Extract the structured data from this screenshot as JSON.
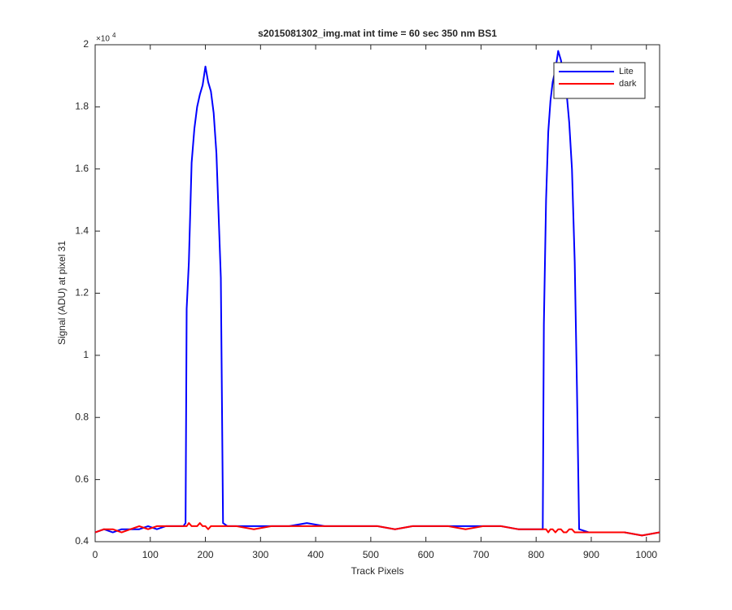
{
  "chart_data": {
    "type": "line",
    "title": "s2015081302_img.mat int time = 60 sec  350 nm BS1",
    "x_label": "Track Pixels",
    "y_label": "Signal (ADU) at pixel 31",
    "y_exponent": {
      "base": "×10",
      "power": "4"
    },
    "x": [
      0,
      16,
      32,
      48,
      64,
      80,
      96,
      112,
      128,
      144,
      160,
      164,
      166,
      170,
      175,
      180,
      185,
      190,
      195,
      200,
      205,
      210,
      215,
      220,
      225,
      228,
      232,
      240,
      256,
      288,
      320,
      352,
      384,
      416,
      448,
      480,
      512,
      544,
      576,
      608,
      640,
      672,
      704,
      736,
      768,
      800,
      812,
      814,
      818,
      822,
      826,
      830,
      835,
      840,
      845,
      850,
      855,
      860,
      865,
      870,
      874,
      878,
      896,
      928,
      960,
      992,
      1024
    ],
    "series": [
      {
        "name": "Lite",
        "color": "#0000ff",
        "values": [
          0.43,
          0.44,
          0.43,
          0.44,
          0.44,
          0.44,
          0.45,
          0.44,
          0.45,
          0.45,
          0.45,
          0.46,
          1.15,
          1.3,
          1.62,
          1.73,
          1.8,
          1.84,
          1.87,
          1.93,
          1.88,
          1.85,
          1.78,
          1.65,
          1.4,
          1.25,
          0.46,
          0.45,
          0.45,
          0.45,
          0.45,
          0.45,
          0.46,
          0.45,
          0.45,
          0.45,
          0.45,
          0.44,
          0.45,
          0.45,
          0.45,
          0.45,
          0.45,
          0.45,
          0.44,
          0.44,
          0.44,
          1.1,
          1.5,
          1.72,
          1.82,
          1.88,
          1.92,
          1.98,
          1.95,
          1.9,
          1.85,
          1.75,
          1.6,
          1.3,
          0.9,
          0.44,
          0.43,
          0.43,
          0.43,
          0.42,
          0.43
        ]
      },
      {
        "name": "dark",
        "color": "#ff0000",
        "values": [
          0.43,
          0.44,
          0.44,
          0.43,
          0.44,
          0.45,
          0.44,
          0.45,
          0.45,
          0.45,
          0.45,
          0.45,
          0.45,
          0.46,
          0.45,
          0.45,
          0.45,
          0.46,
          0.45,
          0.45,
          0.44,
          0.45,
          0.45,
          0.45,
          0.45,
          0.45,
          0.45,
          0.45,
          0.45,
          0.44,
          0.45,
          0.45,
          0.45,
          0.45,
          0.45,
          0.45,
          0.45,
          0.44,
          0.45,
          0.45,
          0.45,
          0.44,
          0.45,
          0.45,
          0.44,
          0.44,
          0.44,
          0.44,
          0.44,
          0.43,
          0.44,
          0.44,
          0.43,
          0.44,
          0.44,
          0.43,
          0.43,
          0.44,
          0.44,
          0.43,
          0.43,
          0.43,
          0.43,
          0.43,
          0.43,
          0.42,
          0.43
        ]
      }
    ],
    "xlim": [
      0,
      1024
    ],
    "xticks": [
      0,
      100,
      200,
      300,
      400,
      500,
      600,
      700,
      800,
      900,
      1000
    ],
    "ylim": [
      0.4,
      2
    ],
    "yticks": [
      0.4,
      0.6,
      0.8,
      1,
      1.2,
      1.4,
      1.6,
      1.8,
      2
    ],
    "grid": false,
    "legend": "northeast"
  }
}
